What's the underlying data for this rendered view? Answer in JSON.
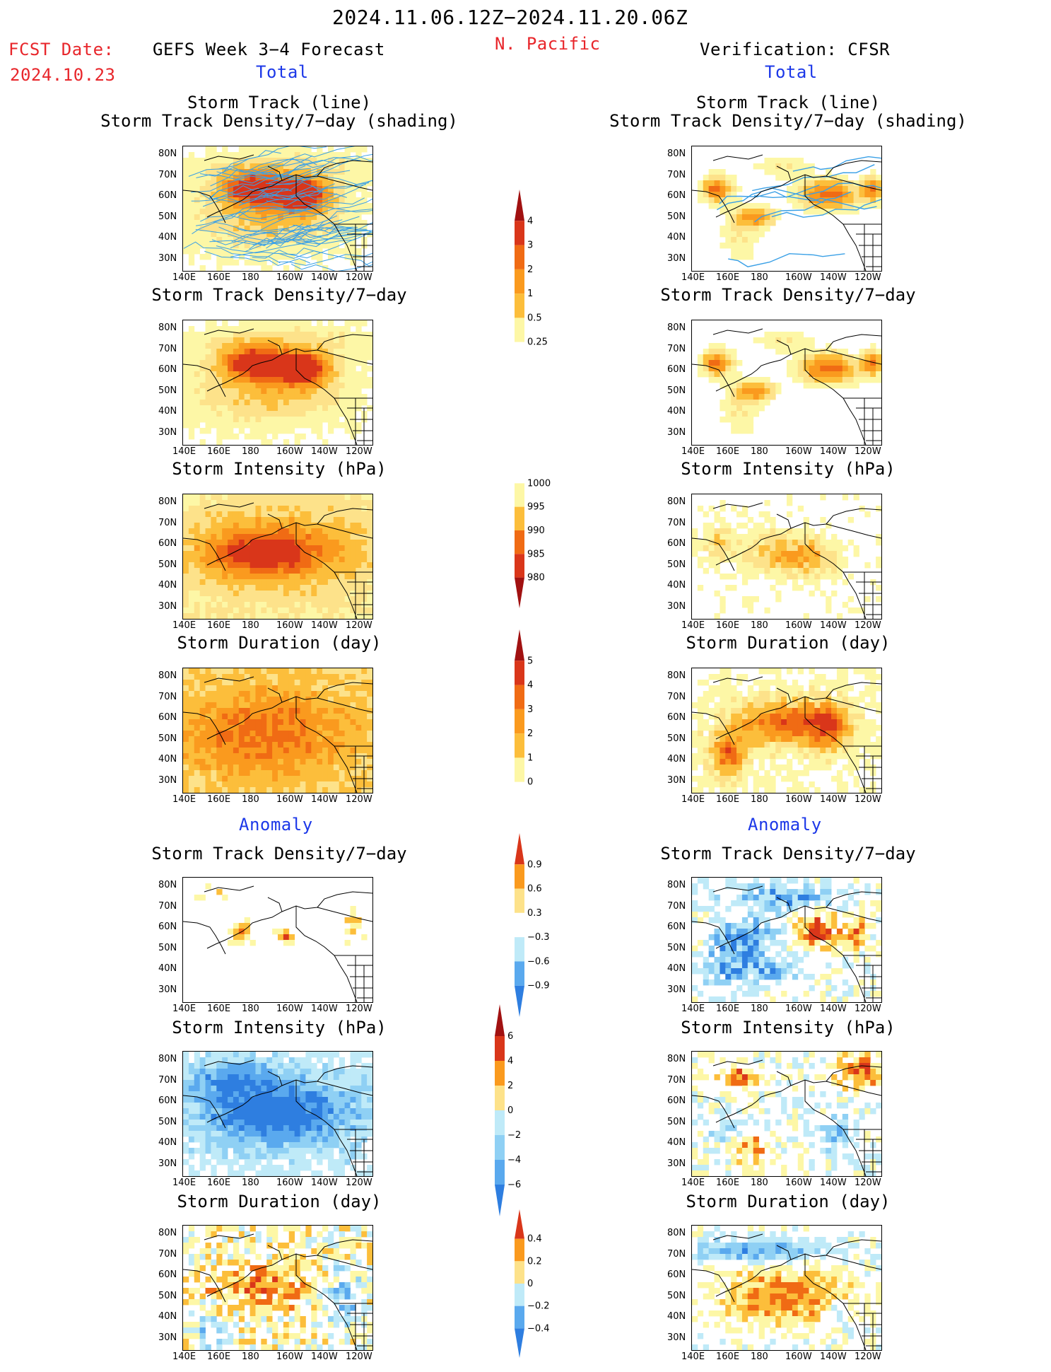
{
  "header": {
    "date_range": "2024.11.06.12Z−2024.11.20.06Z",
    "fcst_label": "FCST Date:",
    "fcst_date": "2024.10.23",
    "left_title": "GEFS Week 3−4 Forecast",
    "region": "N. Pacific",
    "right_title": "Verification: CFSR",
    "total_left": "Total",
    "total_right": "Total",
    "anomaly_left": "Anomaly",
    "anomaly_right": "Anomaly"
  },
  "panels": {
    "p1_title": [
      "Storm Track (line)",
      "Storm Track Density/7−day (shading)"
    ],
    "p2_title": "Storm Track Density/7−day",
    "p3_title": "Storm Intensity (hPa)",
    "p4_title": "Storm Duration (day)",
    "p5_title": "Storm Track Density/7−day",
    "p6_title": "Storm Intensity (hPa)",
    "p7_title": "Storm Duration (day)"
  },
  "colors": {
    "c1": "#fdf7a6",
    "c2": "#fde28a",
    "c3": "#fcbe3b",
    "c4": "#fa9a1e",
    "c5": "#f06b14",
    "c6": "#d9361a",
    "c7": "#a11111",
    "b1": "#bfeaf8",
    "b2": "#8fd0f4",
    "b3": "#5aa9ee",
    "b4": "#2e7ee0",
    "b5": "#1d5fd0",
    "track": "#3aa0e6",
    "land": "#000000"
  },
  "chart_data": {
    "type": "heatmap",
    "description_note": "Gridded maps of the North Pacific storm statistics; categorical level 0-7 per grid cell, negative levels are anomaly blues.",
    "x_ticks": [
      "140E",
      "160E",
      "180",
      "160W",
      "140W",
      "120W"
    ],
    "y_ticks": [
      "80N",
      "70N",
      "60N",
      "50N",
      "40N",
      "30N"
    ],
    "colorbars": [
      {
        "labels": [
          "4",
          "3",
          "2",
          "1",
          "0.5",
          "0.25"
        ]
      },
      {
        "labels": [
          "1000",
          "995",
          "990",
          "985",
          "980"
        ]
      },
      {
        "labels": [
          "5",
          "4",
          "3",
          "2",
          "1",
          "0"
        ]
      },
      {
        "labels": [
          "0.9",
          "0.6",
          "0.3",
          "−0.3",
          "−0.6",
          "−0.9"
        ]
      },
      {
        "labels": [
          "6",
          "4",
          "2",
          "0",
          "−2",
          "−4",
          "−6"
        ]
      },
      {
        "labels": [
          "0.4",
          "0.2",
          "0",
          "−0.2",
          "−0.4"
        ]
      }
    ]
  }
}
